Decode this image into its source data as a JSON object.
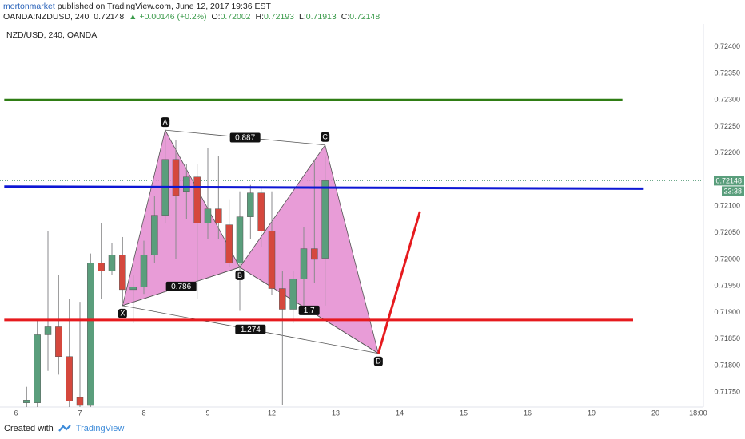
{
  "header": {
    "author": "mortonmarket",
    "published": "published on TradingView.com, June 12, 2017 19:36 EST",
    "symbol": "OANDA:NZDUSD, 240",
    "quote": "0.72148",
    "change": "▲ +0.00146 (+0.2%)",
    "ohlc": [
      {
        "key": "O:",
        "value": "0.72002"
      },
      {
        "key": "H:",
        "value": "0.72193"
      },
      {
        "key": "L:",
        "value": "0.71913"
      },
      {
        "key": "C:",
        "value": "0.72148"
      }
    ]
  },
  "chart_data": {
    "type": "candlestick",
    "symbol_label": "NZD/USD, 240, OANDA",
    "x": [
      1,
      2,
      3,
      4,
      5,
      6,
      7,
      8,
      9,
      10,
      11,
      12,
      13,
      14,
      15,
      16,
      17,
      18,
      19,
      20,
      21,
      22,
      23,
      24,
      25,
      26,
      27,
      28,
      29
    ],
    "open": [
      0.7173,
      0.7173,
      0.71858,
      0.71873,
      0.71817,
      0.7174,
      0.71725,
      0.71993,
      0.71978,
      0.72008,
      0.71943,
      0.71948,
      0.72008,
      0.72083,
      0.72188,
      0.72128,
      0.72155,
      0.72068,
      0.72095,
      0.72065,
      0.71993,
      0.7208,
      0.72125,
      0.72053,
      0.71945,
      0.71906,
      0.71963,
      0.7202,
      0.72002
    ],
    "high": [
      0.7176,
      0.71888,
      0.72053,
      0.7197,
      0.71925,
      0.7192,
      0.72011,
      0.72068,
      0.7203,
      0.72042,
      0.7197,
      0.72035,
      0.7212,
      0.7224,
      0.72225,
      0.7218,
      0.7218,
      0.7221,
      0.72195,
      0.72113,
      0.72128,
      0.7214,
      0.72135,
      0.72128,
      0.71978,
      0.71978,
      0.7206,
      0.72188,
      0.72193
    ],
    "low": [
      0.71722,
      0.71722,
      0.7179,
      0.71783,
      0.71722,
      0.71722,
      0.71722,
      0.71925,
      0.7197,
      0.71918,
      0.7188,
      0.71935,
      0.71993,
      0.72068,
      0.72,
      0.72075,
      0.71925,
      0.72038,
      0.72038,
      0.71985,
      0.71903,
      0.72038,
      0.72023,
      0.71933,
      0.71725,
      0.7188,
      0.71895,
      0.71955,
      0.71913
    ],
    "close": [
      0.71735,
      0.71858,
      0.71873,
      0.71817,
      0.71733,
      0.71725,
      0.71993,
      0.71978,
      0.72008,
      0.71943,
      0.71948,
      0.72008,
      0.72083,
      0.72188,
      0.7212,
      0.72155,
      0.72068,
      0.72095,
      0.72068,
      0.71993,
      0.7208,
      0.72125,
      0.72053,
      0.71945,
      0.71906,
      0.71963,
      0.7202,
      0.72,
      0.72148
    ],
    "up_color": "#5a9e7c",
    "down_color": "#d5483d",
    "wick_color": "#8a8a8c",
    "xlim": [
      -1.5,
      64.5
    ],
    "ylim": [
      0.71722,
      0.72443
    ],
    "xticks": [
      {
        "value": 0,
        "label": "6"
      },
      {
        "value": 6,
        "label": "7"
      },
      {
        "value": 12,
        "label": "8"
      },
      {
        "value": 18,
        "label": "9"
      },
      {
        "value": 24,
        "label": "12"
      },
      {
        "value": 30,
        "label": "13"
      },
      {
        "value": 36,
        "label": "14"
      },
      {
        "value": 42,
        "label": "15"
      },
      {
        "value": 48,
        "label": "16"
      },
      {
        "value": 54,
        "label": "19"
      },
      {
        "value": 60,
        "label": "20"
      },
      {
        "value": 64,
        "label": "18:00"
      }
    ],
    "yticks": [
      {
        "value": 0.724,
        "label": "0.72400"
      },
      {
        "value": 0.7235,
        "label": "0.72350"
      },
      {
        "value": 0.723,
        "label": "0.72300"
      },
      {
        "value": 0.7225,
        "label": "0.72250"
      },
      {
        "value": 0.722,
        "label": "0.72200"
      },
      {
        "value": 0.721,
        "label": "0.72100"
      },
      {
        "value": 0.7205,
        "label": "0.72050"
      },
      {
        "value": 0.72,
        "label": "0.72000"
      },
      {
        "value": 0.7195,
        "label": "0.71950"
      },
      {
        "value": 0.719,
        "label": "0.71900"
      },
      {
        "value": 0.7185,
        "label": "0.71850"
      },
      {
        "value": 0.718,
        "label": "0.71800"
      },
      {
        "value": 0.7175,
        "label": "0.71750"
      }
    ],
    "last_price": 0.72148,
    "countdown": "23:38",
    "last_color": "#5a9e7c",
    "lines": [
      {
        "color": "#2f7d14",
        "x": [
          -1.1,
          56.9
        ],
        "y": [
          0.723,
          0.723
        ]
      },
      {
        "color": "#0c17d4",
        "x": [
          -1.1,
          58.9
        ],
        "y": [
          0.72137,
          0.72133
        ]
      },
      {
        "color": "#e61a1e",
        "x": [
          -1.1,
          57.9
        ],
        "y": [
          0.71886,
          0.71886
        ]
      },
      {
        "color": "#e61a1e",
        "x": [
          34,
          37.9
        ],
        "y": [
          0.71823,
          0.7209
        ]
      }
    ],
    "pattern": {
      "color": "#e48bd0",
      "labels": [
        "X",
        "A",
        "B",
        "C",
        "D"
      ],
      "x": [
        10,
        14,
        21,
        29,
        34
      ],
      "y": [
        0.71913,
        0.72243,
        0.71985,
        0.72215,
        0.71823
      ],
      "ratios": [
        {
          "label": "0.887",
          "legs": [
            "A",
            "C"
          ]
        },
        {
          "label": "0.786",
          "legs": [
            "X",
            "B"
          ]
        },
        {
          "label": "1.274",
          "legs": [
            "X",
            "D"
          ]
        },
        {
          "label": "1.7",
          "legs": [
            "B",
            "D"
          ]
        }
      ]
    }
  },
  "footer": {
    "created": "Created with",
    "brand": "TradingView"
  }
}
